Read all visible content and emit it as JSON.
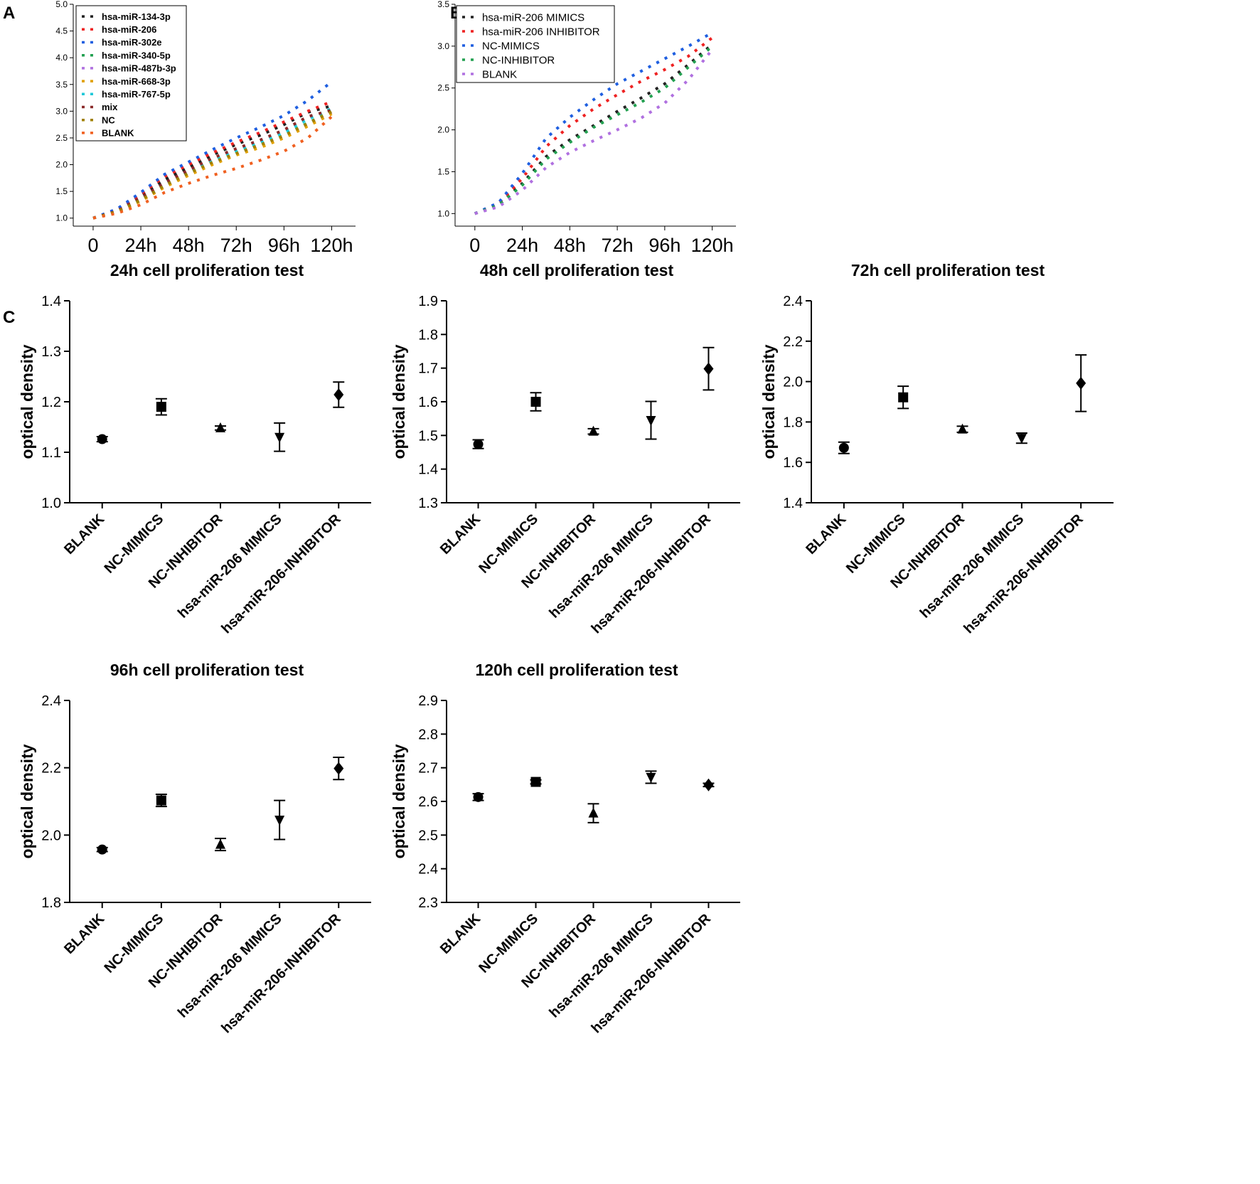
{
  "panel_labels": {
    "a": "A",
    "b": "B",
    "c": "C"
  },
  "chart_data": [
    {
      "id": "A",
      "type": "line",
      "line_style": "dotted",
      "xlabel": "",
      "ylabel": "",
      "x": [
        0,
        12,
        24,
        36,
        48,
        60,
        72,
        84,
        96,
        108,
        120
      ],
      "x_tick_labels": [
        "0",
        "24h",
        "48h",
        "72h",
        "96h",
        "120h"
      ],
      "x_tick_values": [
        0,
        24,
        48,
        72,
        96,
        120
      ],
      "xlim": [
        -10,
        132
      ],
      "ylim": [
        0.85,
        5.0
      ],
      "y_ticks": [
        "1.0",
        "1.5",
        "2.0",
        "2.5",
        "3.0",
        "3.5",
        "4.0",
        "4.5",
        "5.0"
      ],
      "legend_position": "top-left",
      "series": [
        {
          "name": "hsa-miR-134-3p",
          "color": "#222222",
          "values": [
            1.0,
            1.14,
            1.42,
            1.72,
            1.95,
            2.18,
            2.38,
            2.55,
            2.75,
            2.98,
            3.1
          ]
        },
        {
          "name": "hsa-miR-206",
          "color": "#ee2222",
          "values": [
            1.0,
            1.16,
            1.45,
            1.78,
            2.0,
            2.22,
            2.42,
            2.6,
            2.8,
            3.0,
            3.18
          ]
        },
        {
          "name": "hsa-miR-302e",
          "color": "#1f5fe0",
          "values": [
            1.0,
            1.17,
            1.48,
            1.82,
            2.05,
            2.28,
            2.5,
            2.7,
            2.92,
            3.2,
            3.55
          ]
        },
        {
          "name": "hsa-miR-340-5p",
          "color": "#22a050",
          "values": [
            1.0,
            1.12,
            1.35,
            1.62,
            1.85,
            2.05,
            2.22,
            2.38,
            2.55,
            2.78,
            3.0
          ]
        },
        {
          "name": "hsa-miR-487b-3p",
          "color": "#b070e0",
          "values": [
            1.0,
            1.12,
            1.33,
            1.6,
            1.83,
            2.02,
            2.2,
            2.36,
            2.52,
            2.75,
            2.98
          ]
        },
        {
          "name": "hsa-miR-668-3p",
          "color": "#e0a000",
          "values": [
            1.0,
            1.11,
            1.32,
            1.58,
            1.8,
            2.0,
            2.18,
            2.32,
            2.5,
            2.72,
            2.95
          ]
        },
        {
          "name": "hsa-miR-767-5p",
          "color": "#20c8d8",
          "values": [
            1.0,
            1.12,
            1.36,
            1.64,
            1.87,
            2.08,
            2.25,
            2.42,
            2.6,
            2.85,
            3.05
          ]
        },
        {
          "name": "mix",
          "color": "#8a2a2a",
          "values": [
            1.0,
            1.13,
            1.38,
            1.66,
            1.9,
            2.12,
            2.3,
            2.46,
            2.65,
            2.9,
            3.02
          ]
        },
        {
          "name": "NC",
          "color": "#a08000",
          "values": [
            1.0,
            1.12,
            1.34,
            1.61,
            1.84,
            2.04,
            2.21,
            2.37,
            2.54,
            2.77,
            2.99
          ]
        },
        {
          "name": "BLANK",
          "color": "#f06020",
          "values": [
            1.0,
            1.09,
            1.25,
            1.48,
            1.65,
            1.8,
            1.93,
            2.08,
            2.25,
            2.5,
            2.9
          ]
        }
      ]
    },
    {
      "id": "B",
      "type": "line",
      "line_style": "dotted",
      "xlabel": "",
      "ylabel": "",
      "x": [
        0,
        12,
        24,
        36,
        48,
        60,
        72,
        84,
        96,
        108,
        120
      ],
      "x_tick_labels": [
        "0",
        "24h",
        "48h",
        "72h",
        "96h",
        "120h"
      ],
      "x_tick_values": [
        0,
        24,
        48,
        72,
        96,
        120
      ],
      "xlim": [
        -10,
        132
      ],
      "ylim": [
        0.85,
        3.5
      ],
      "y_ticks": [
        "1.0",
        "1.5",
        "2.0",
        "2.5",
        "3.0",
        "3.5"
      ],
      "legend_position": "top-left",
      "series": [
        {
          "name": "hsa-miR-206 MIMICS",
          "color": "#222222",
          "values": [
            1.0,
            1.1,
            1.36,
            1.68,
            1.88,
            2.05,
            2.22,
            2.38,
            2.55,
            2.78,
            3.02
          ]
        },
        {
          "name": "hsa-miR-206 INHIBITOR",
          "color": "#ee2222",
          "values": [
            1.0,
            1.12,
            1.42,
            1.8,
            2.05,
            2.25,
            2.42,
            2.58,
            2.72,
            2.88,
            3.1
          ]
        },
        {
          "name": "NC-MIMICS",
          "color": "#1f5fe0",
          "values": [
            1.0,
            1.13,
            1.48,
            1.9,
            2.15,
            2.36,
            2.55,
            2.7,
            2.85,
            3.0,
            3.16
          ]
        },
        {
          "name": "NC-INHIBITOR",
          "color": "#22a050",
          "values": [
            1.0,
            1.1,
            1.34,
            1.65,
            1.85,
            2.03,
            2.18,
            2.33,
            2.5,
            2.75,
            3.0
          ]
        },
        {
          "name": "BLANK",
          "color": "#b070e0",
          "values": [
            1.0,
            1.08,
            1.28,
            1.55,
            1.73,
            1.87,
            2.0,
            2.14,
            2.32,
            2.6,
            2.96
          ]
        }
      ]
    },
    {
      "id": "C1",
      "type": "scatter",
      "title": "24h cell proliferation test",
      "xlabel": "",
      "ylabel": "optical density",
      "categories": [
        "BLANK",
        "NC-MIMICS",
        "NC-INHIBITOR",
        "hsa-miR-206 MIMICS",
        "hsa-miR-206-INHIBITOR"
      ],
      "values": [
        1.126,
        1.19,
        1.148,
        1.13,
        1.214
      ],
      "errors": [
        0.005,
        0.016,
        0.004,
        0.028,
        0.025
      ],
      "markers": [
        "circle",
        "square",
        "triangle-up",
        "triangle-down",
        "diamond"
      ],
      "ylim": [
        1.0,
        1.4
      ],
      "y_ticks": [
        "1.0",
        "1.1",
        "1.2",
        "1.3",
        "1.4"
      ]
    },
    {
      "id": "C2",
      "type": "scatter",
      "title": "48h cell proliferation test",
      "xlabel": "",
      "ylabel": "optical density",
      "categories": [
        "BLANK",
        "NC-MIMICS",
        "NC-INHIBITOR",
        "hsa-miR-206 MIMICS",
        "hsa-miR-206-INHIBITOR"
      ],
      "values": [
        1.474,
        1.6,
        1.512,
        1.545,
        1.698
      ],
      "errors": [
        0.013,
        0.027,
        0.008,
        0.056,
        0.063
      ],
      "markers": [
        "circle",
        "square",
        "triangle-up",
        "triangle-down",
        "diamond"
      ],
      "ylim": [
        1.3,
        1.9
      ],
      "y_ticks": [
        "1.3",
        "1.4",
        "1.5",
        "1.6",
        "1.7",
        "1.8",
        "1.9"
      ]
    },
    {
      "id": "C3",
      "type": "scatter",
      "title": "72h cell proliferation test",
      "xlabel": "",
      "ylabel": "optical density",
      "categories": [
        "BLANK",
        "NC-MIMICS",
        "NC-INHIBITOR",
        "hsa-miR-206 MIMICS",
        "hsa-miR-206-INHIBITOR"
      ],
      "values": [
        1.672,
        1.922,
        1.764,
        1.72,
        1.992
      ],
      "errors": [
        0.028,
        0.055,
        0.015,
        0.025,
        0.14
      ],
      "markers": [
        "circle",
        "square",
        "triangle-up",
        "triangle-down",
        "diamond"
      ],
      "ylim": [
        1.4,
        2.4
      ],
      "y_ticks": [
        "1.4",
        "1.6",
        "1.8",
        "2.0",
        "2.2",
        "2.4"
      ]
    },
    {
      "id": "C4",
      "type": "scatter",
      "title": "96h cell proliferation test",
      "xlabel": "",
      "ylabel": "optical density",
      "categories": [
        "BLANK",
        "NC-MIMICS",
        "NC-INHIBITOR",
        "hsa-miR-206 MIMICS",
        "hsa-miR-206-INHIBITOR"
      ],
      "values": [
        1.957,
        2.103,
        1.972,
        2.045,
        2.198
      ],
      "errors": [
        0.006,
        0.018,
        0.018,
        0.058,
        0.033
      ],
      "markers": [
        "circle",
        "square",
        "triangle-up",
        "triangle-down",
        "diamond"
      ],
      "ylim": [
        1.8,
        2.4
      ],
      "y_ticks": [
        "1.8",
        "2.0",
        "2.2",
        "2.4"
      ]
    },
    {
      "id": "C5",
      "type": "scatter",
      "title": "120h cell proliferation test",
      "xlabel": "",
      "ylabel": "optical density",
      "categories": [
        "BLANK",
        "NC-MIMICS",
        "NC-INHIBITOR",
        "hsa-miR-206 MIMICS",
        "hsa-miR-206-INHIBITOR"
      ],
      "values": [
        2.613,
        2.658,
        2.565,
        2.672,
        2.649
      ],
      "errors": [
        0.01,
        0.006,
        0.028,
        0.018,
        0.005
      ],
      "markers": [
        "circle",
        "square",
        "triangle-up",
        "triangle-down",
        "diamond"
      ],
      "ylim": [
        2.3,
        2.9
      ],
      "y_ticks": [
        "2.3",
        "2.4",
        "2.5",
        "2.6",
        "2.7",
        "2.8",
        "2.9"
      ]
    }
  ]
}
